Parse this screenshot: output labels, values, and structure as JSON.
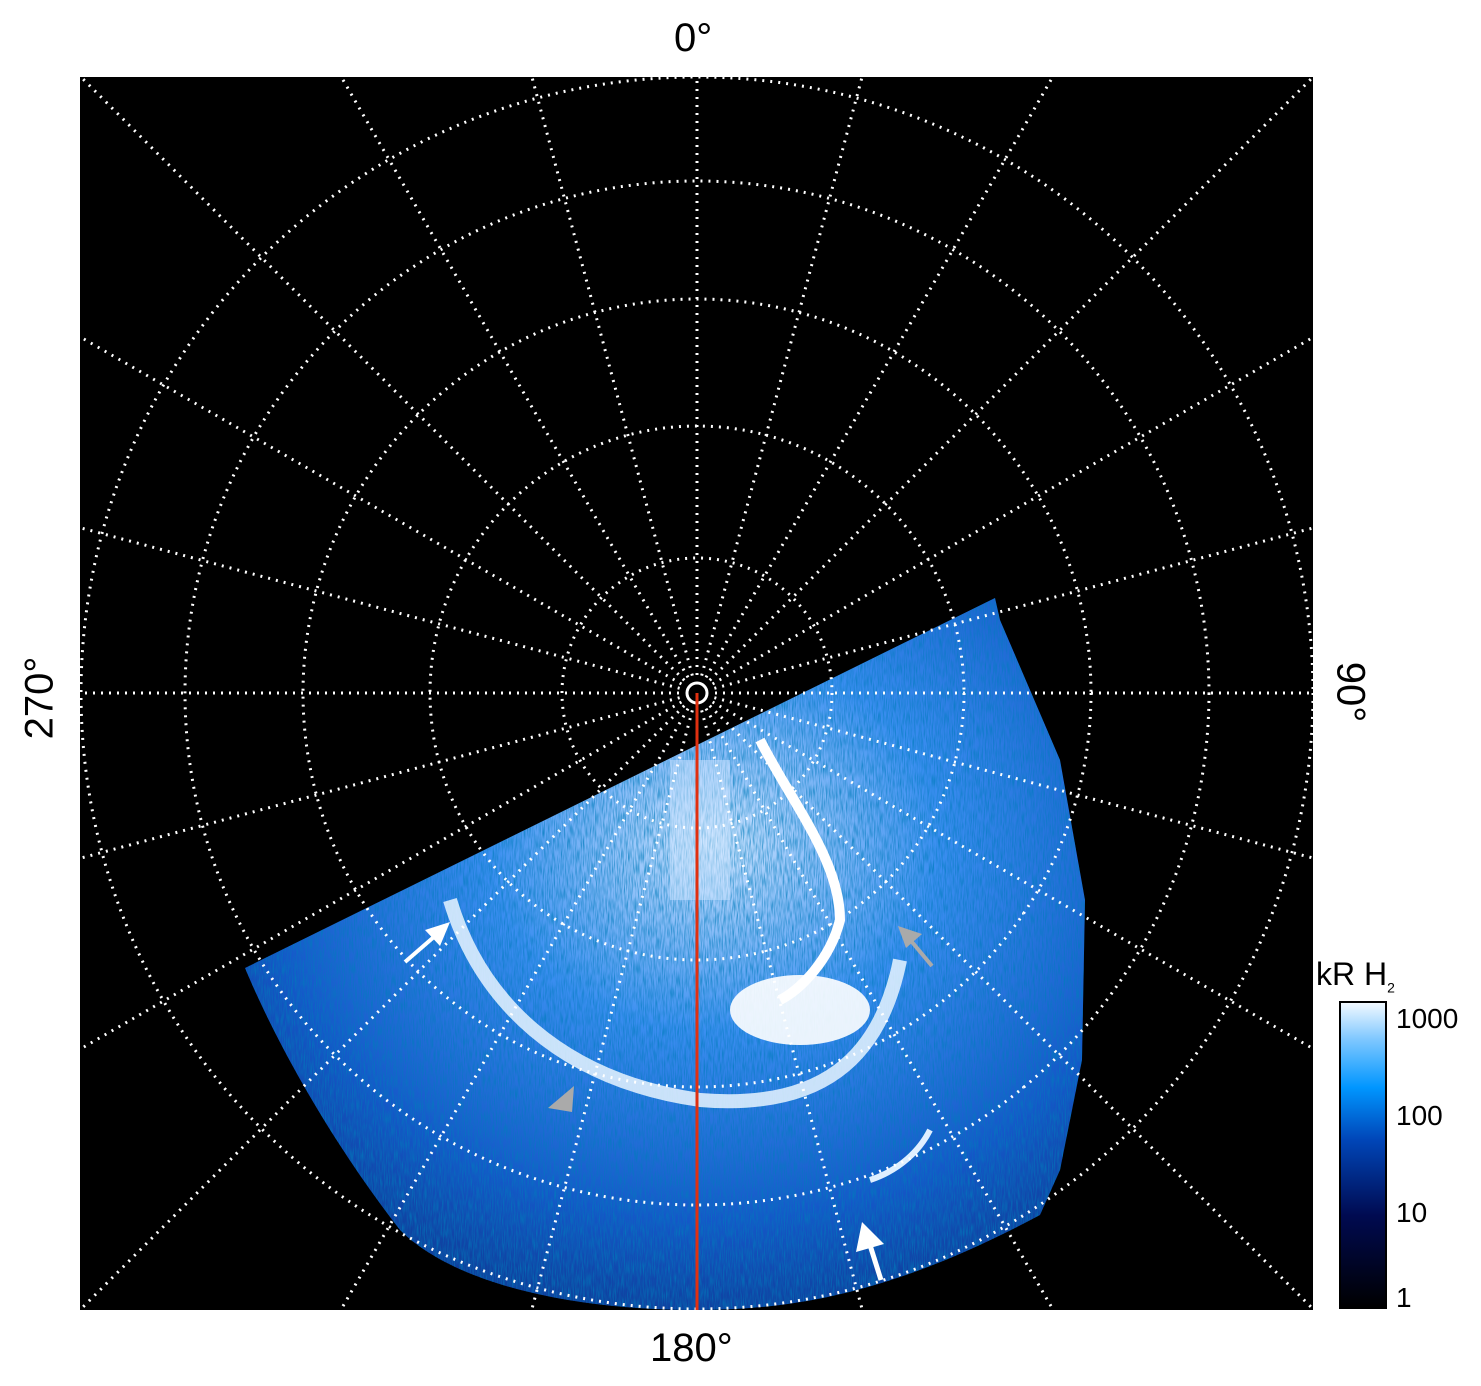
{
  "chart_data": {
    "type": "heatmap",
    "projection": "polar",
    "angular_labels": {
      "top": "0°",
      "right": "90°",
      "bottom": "180°",
      "left": "270°"
    },
    "angular_grid_step_deg": 15,
    "grid": true,
    "grid_style": "white dotted",
    "colorbar": {
      "title": "kR H",
      "title_subscript": "2",
      "scale": "log",
      "range": [
        1,
        1000
      ],
      "ticks": [
        "1000",
        "100",
        "10",
        "1"
      ],
      "colormap": [
        "#000000",
        "#000a50",
        "#0040c0",
        "#0090ff",
        "#80c8ff",
        "#ffffff"
      ]
    },
    "reference_line": {
      "angle_deg": 180,
      "color": "#e03010"
    },
    "arrows": [
      {
        "color": "#ffffff"
      },
      {
        "color": "#aaaaaa"
      },
      {
        "color": "#aaaaaa"
      },
      {
        "color": "#ffffff"
      }
    ]
  }
}
